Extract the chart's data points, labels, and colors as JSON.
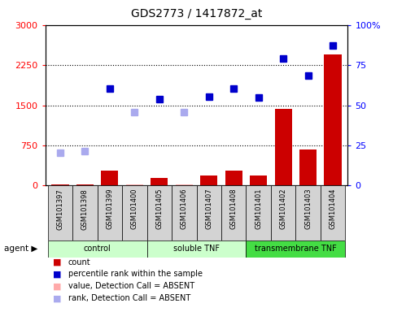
{
  "title": "GDS2773 / 1417872_at",
  "samples": [
    "GSM101397",
    "GSM101398",
    "GSM101399",
    "GSM101400",
    "GSM101405",
    "GSM101406",
    "GSM101407",
    "GSM101408",
    "GSM101401",
    "GSM101402",
    "GSM101403",
    "GSM101404"
  ],
  "count_values": [
    18,
    18,
    280,
    30,
    140,
    18,
    190,
    280,
    190,
    1430,
    680,
    2450
  ],
  "count_absent": [
    false,
    false,
    false,
    true,
    false,
    true,
    false,
    false,
    false,
    false,
    false,
    false
  ],
  "rank_present": [
    null,
    null,
    1820,
    null,
    1620,
    null,
    1660,
    1820,
    1640,
    2380,
    2050,
    2620
  ],
  "rank_absent": [
    610,
    640,
    null,
    1380,
    null,
    1380,
    null,
    null,
    null,
    null,
    null,
    null
  ],
  "ylim_left": [
    0,
    3000
  ],
  "ylim_right": [
    0,
    100
  ],
  "yticks_left": [
    0,
    750,
    1500,
    2250,
    3000
  ],
  "yticks_right": [
    0,
    25,
    50,
    75,
    100
  ],
  "ytick_labels_right": [
    "0",
    "25",
    "50",
    "75",
    "100%"
  ],
  "bar_color_present": "#cc0000",
  "bar_color_absent": "#ffaaaa",
  "rank_color_present": "#0000cc",
  "rank_color_absent": "#aaaaee",
  "group_configs": [
    {
      "start": 0,
      "end": 3,
      "name": "control",
      "color": "#ccffcc"
    },
    {
      "start": 4,
      "end": 7,
      "name": "soluble TNF",
      "color": "#ccffcc"
    },
    {
      "start": 8,
      "end": 11,
      "name": "transmembrane TNF",
      "color": "#44dd44"
    }
  ],
  "legend_items": [
    {
      "color": "#cc0000",
      "label": "count"
    },
    {
      "color": "#0000cc",
      "label": "percentile rank within the sample"
    },
    {
      "color": "#ffaaaa",
      "label": "value, Detection Call = ABSENT"
    },
    {
      "color": "#aaaaee",
      "label": "rank, Detection Call = ABSENT"
    }
  ]
}
